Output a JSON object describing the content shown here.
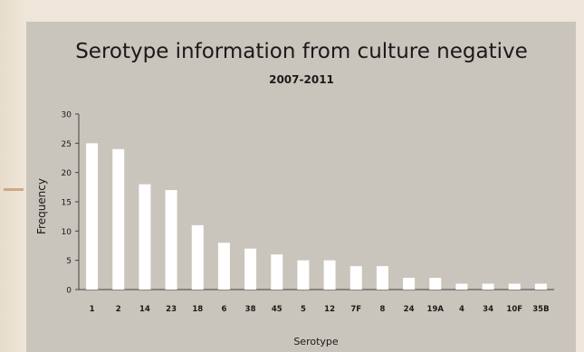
{
  "chart_data": {
    "type": "bar",
    "title": "Serotype information from culture negative",
    "subtitle": "2007-2011",
    "xlabel": "Serotype",
    "ylabel": "Frequency",
    "ylim": [
      0,
      30
    ],
    "yticks": [
      0,
      5,
      10,
      15,
      20,
      25,
      30
    ],
    "grid": false,
    "categories": [
      "1",
      "2",
      "14",
      "23",
      "18",
      "6",
      "38",
      "45",
      "5",
      "12",
      "7F",
      "8",
      "24",
      "19A",
      "4",
      "34",
      "10F",
      "35B"
    ],
    "values": [
      25,
      24,
      18,
      17,
      11,
      8,
      7,
      6,
      5,
      5,
      4,
      4,
      2,
      2,
      1,
      1,
      1,
      1
    ],
    "colors": {
      "bar": "#ffffff",
      "panel": "#c9c4bc",
      "text": "#1a1a1a",
      "axis": "#444444"
    }
  }
}
